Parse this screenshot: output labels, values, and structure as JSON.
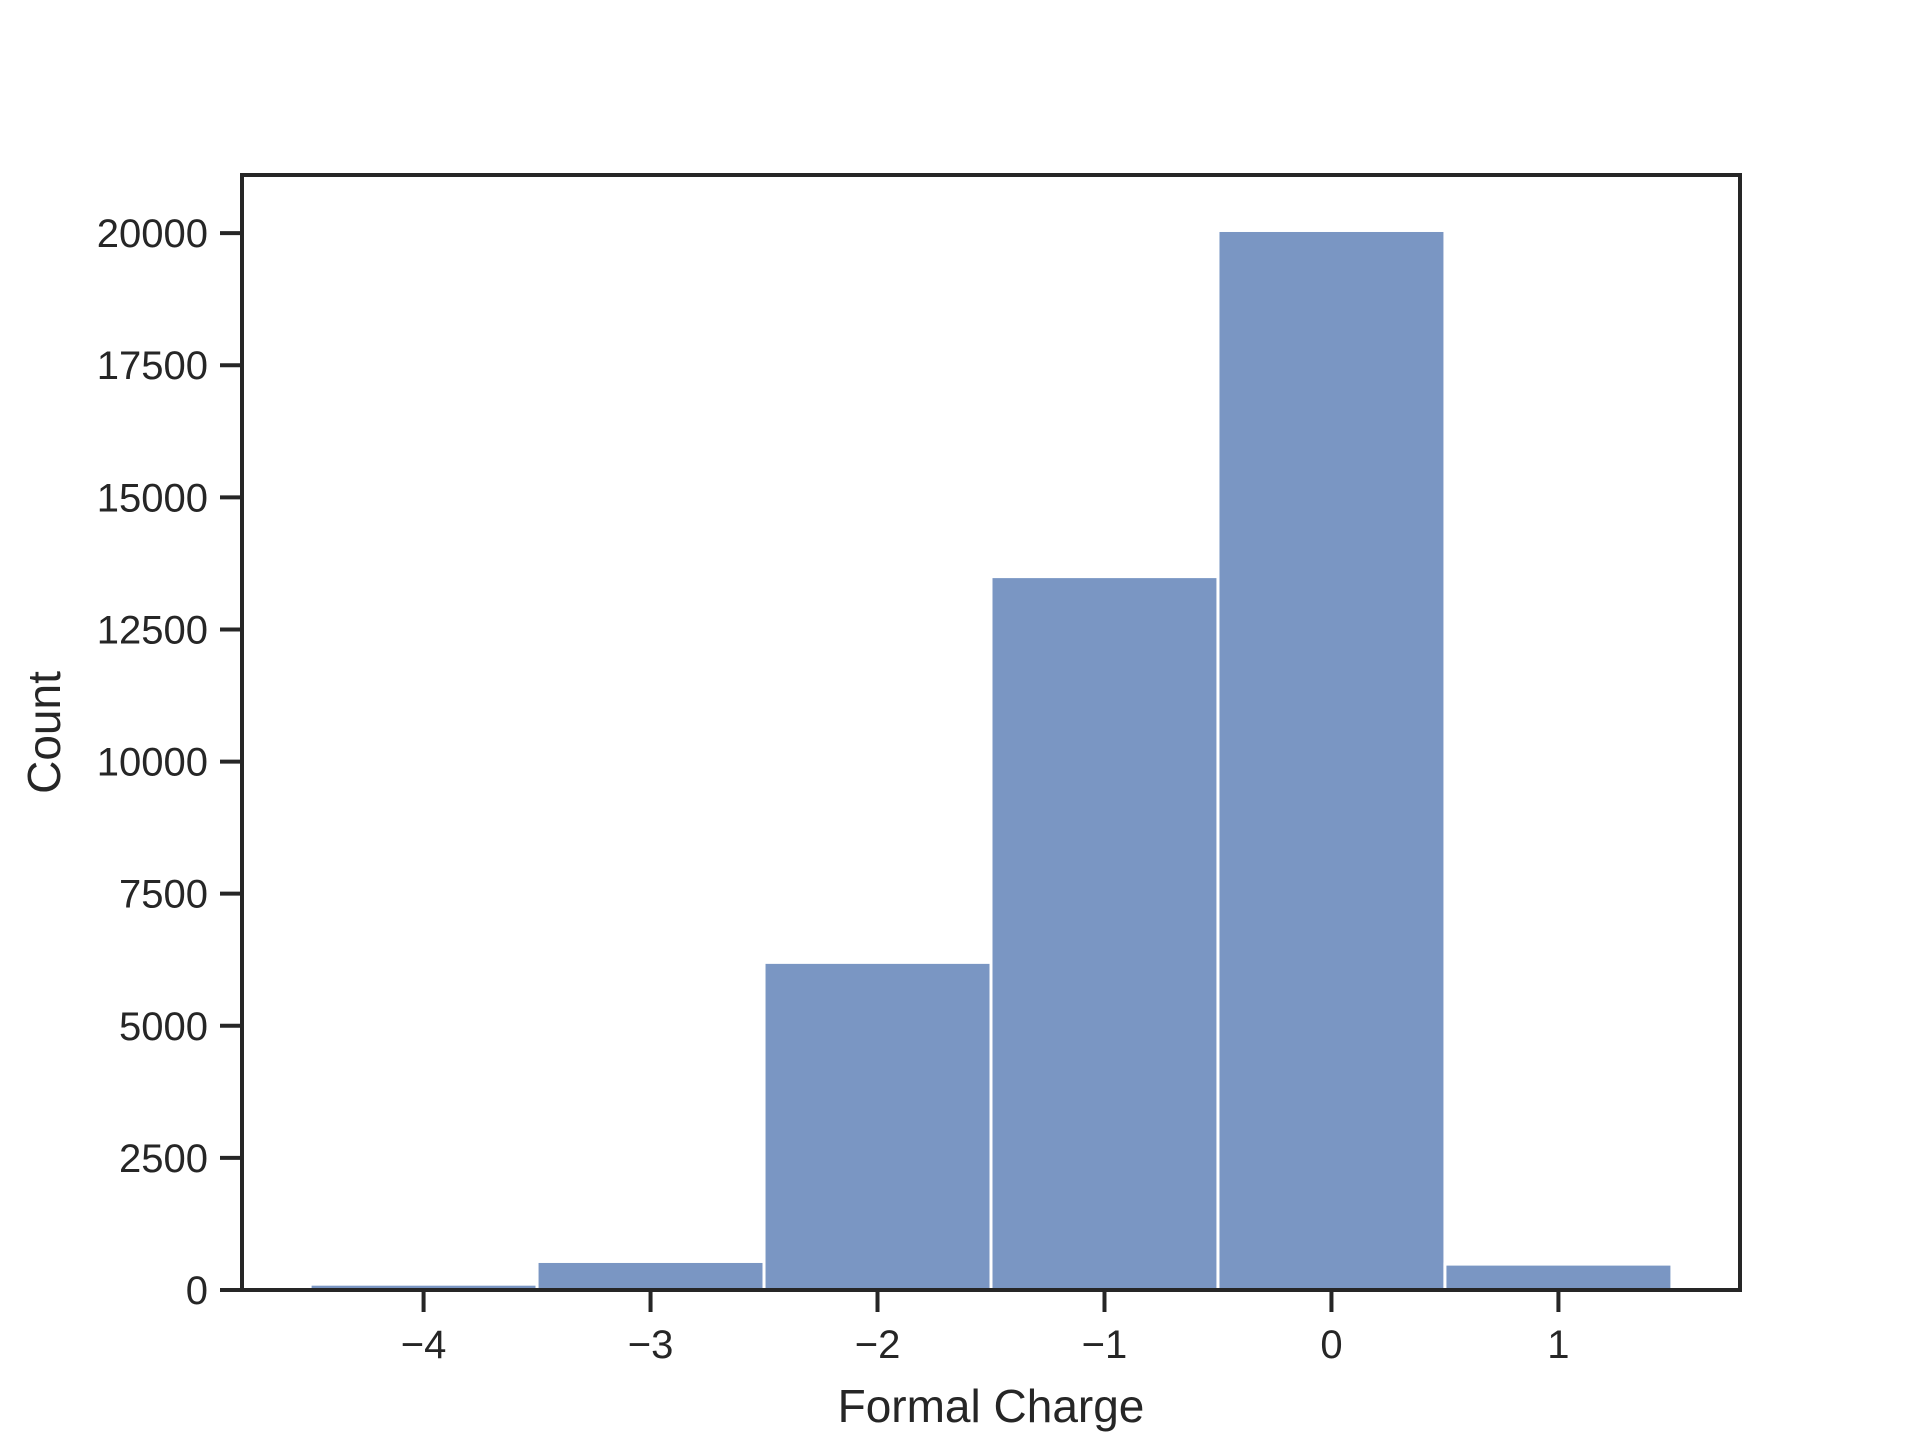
{
  "chart_data": {
    "type": "bar",
    "title": "",
    "xlabel": "Formal Charge",
    "ylabel": "Count",
    "categories": [
      "-4",
      "-3",
      "-2",
      "-1",
      "0",
      "1"
    ],
    "x": [
      -4,
      -3,
      -2,
      -1,
      0,
      1
    ],
    "values": [
      110,
      540,
      6200,
      13500,
      20050,
      490
    ],
    "xlim": [
      -4.8,
      1.8
    ],
    "ylim": [
      0,
      21100
    ],
    "x_ticks": [
      -4,
      -3,
      -2,
      -1,
      0,
      1
    ],
    "x_tick_labels": [
      "−4",
      "−3",
      "−2",
      "−1",
      "0",
      "1"
    ],
    "y_ticks": [
      0,
      2500,
      5000,
      7500,
      10000,
      12500,
      15000,
      17500,
      20000
    ],
    "y_tick_labels": [
      "0",
      "2500",
      "5000",
      "7500",
      "10000",
      "12500",
      "15000",
      "17500",
      "20000"
    ],
    "grid": false,
    "legend": "none",
    "colors": {
      "bar_fill": "#7a96c3",
      "bar_edge": "#ffffff",
      "axes": "#262626",
      "text": "#262626"
    }
  }
}
